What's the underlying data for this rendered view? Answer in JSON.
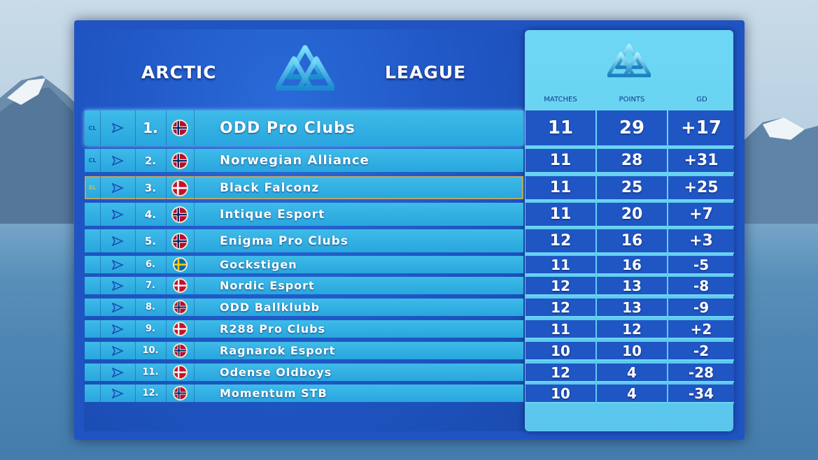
{
  "header": {
    "title_left": "ARCTIC",
    "title_right": "LEAGUE",
    "logo_icon": "triquetra-triangle-logo"
  },
  "columns": {
    "matches": "MATCHES",
    "points": "POINTS",
    "gd": "GD"
  },
  "colors": {
    "panel": "#1f54c2",
    "row": "#28a6de",
    "stats_panel": "#5bc6ec",
    "stat_box": "#1f56c4",
    "el_badge": "#e0c000"
  },
  "rows": [
    {
      "badge": "CL",
      "rank": "1.",
      "flag": "norway",
      "team": "ODD Pro Clubs",
      "matches": "11",
      "points": "29",
      "gd": "+17"
    },
    {
      "badge": "CL",
      "rank": "2.",
      "flag": "norway",
      "team": "Norwegian Alliance",
      "matches": "11",
      "points": "28",
      "gd": "+31"
    },
    {
      "badge": "EL",
      "rank": "3.",
      "flag": "denmark",
      "team": "Black Falconz",
      "matches": "11",
      "points": "25",
      "gd": "+25"
    },
    {
      "badge": "",
      "rank": "4.",
      "flag": "norway",
      "team": "Intique Esport",
      "matches": "11",
      "points": "20",
      "gd": "+7"
    },
    {
      "badge": "",
      "rank": "5.",
      "flag": "norway",
      "team": "Enigma Pro Clubs",
      "matches": "12",
      "points": "16",
      "gd": "+3"
    },
    {
      "badge": "",
      "rank": "6.",
      "flag": "sweden",
      "team": "Gockstigen",
      "matches": "11",
      "points": "16",
      "gd": "-5"
    },
    {
      "badge": "",
      "rank": "7.",
      "flag": "denmark",
      "team": "Nordic Esport",
      "matches": "12",
      "points": "13",
      "gd": "-8"
    },
    {
      "badge": "",
      "rank": "8.",
      "flag": "norway",
      "team": "ODD Ballklubb",
      "matches": "12",
      "points": "13",
      "gd": "-9"
    },
    {
      "badge": "",
      "rank": "9.",
      "flag": "denmark",
      "team": "R288 Pro Clubs",
      "matches": "11",
      "points": "12",
      "gd": "+2"
    },
    {
      "badge": "",
      "rank": "10.",
      "flag": "norway",
      "team": "Ragnarok Esport",
      "matches": "10",
      "points": "10",
      "gd": "-2"
    },
    {
      "badge": "",
      "rank": "11.",
      "flag": "denmark",
      "team": "Odense Oldboys",
      "matches": "12",
      "points": "4",
      "gd": "-28"
    },
    {
      "badge": "",
      "rank": "12.",
      "flag": "norway",
      "team": "Momentum STB",
      "matches": "10",
      "points": "4",
      "gd": "-34"
    }
  ]
}
